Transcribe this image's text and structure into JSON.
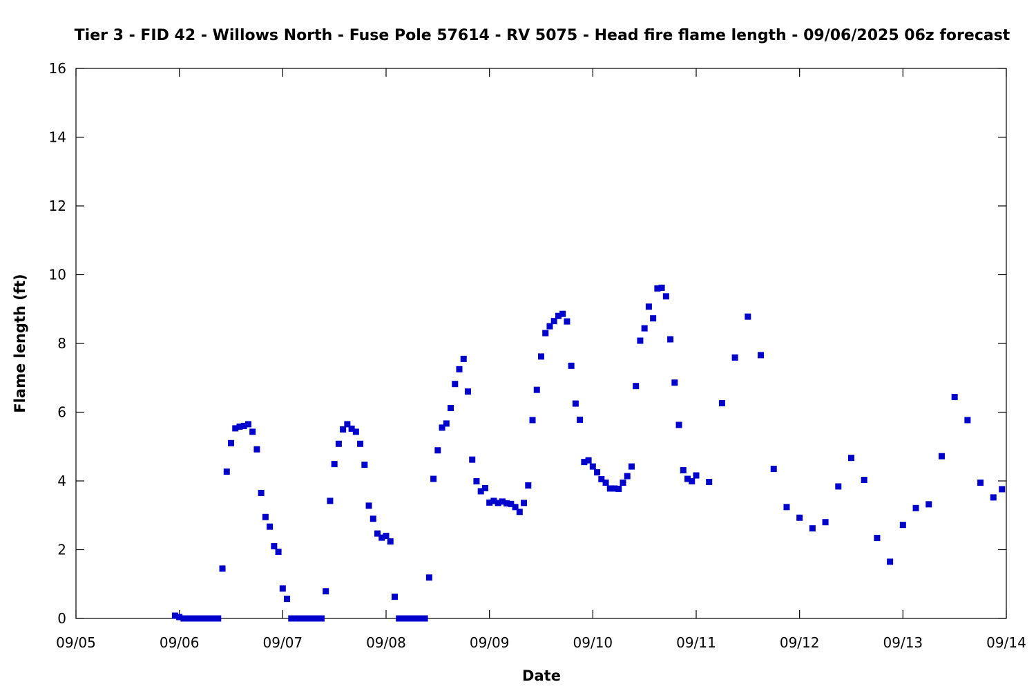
{
  "chart_data": {
    "type": "scatter",
    "title": "Tier 3 - FID 42 - Willows North - Fuse Pole 57614 - RV 5075 - Head fire flame length - 09/06/2025 06z forecast",
    "xlabel": "Date",
    "ylabel": "Flame length (ft)",
    "x_axis": {
      "type": "date",
      "range": [
        "09/05",
        "09/14"
      ],
      "tick_labels": [
        "09/05",
        "09/06",
        "09/07",
        "09/08",
        "09/09",
        "09/10",
        "09/11",
        "09/12",
        "09/13",
        "09/14"
      ]
    },
    "y_axis": {
      "range": [
        0,
        16
      ],
      "tick_values": [
        0,
        2,
        4,
        6,
        8,
        10,
        12,
        14,
        16
      ],
      "tick_labels": [
        "0",
        "2",
        "4",
        "6",
        "8",
        "10",
        "12",
        "14",
        "16"
      ]
    },
    "grid": false,
    "legend": "none",
    "marker_color": "#0000cc",
    "marker_shape": "square",
    "series": [
      {
        "points": [
          [
            "2025-09-05T23:00",
            0.08
          ],
          [
            "2025-09-06T00:00",
            0.04
          ],
          [
            "2025-09-06T01:00",
            0.0
          ],
          [
            "2025-09-06T02:00",
            0.0
          ],
          [
            "2025-09-06T03:00",
            0.0
          ],
          [
            "2025-09-06T04:00",
            0.0
          ],
          [
            "2025-09-06T05:00",
            0.0
          ],
          [
            "2025-09-06T06:00",
            0.0
          ],
          [
            "2025-09-06T07:00",
            0.0
          ],
          [
            "2025-09-06T08:00",
            0.0
          ],
          [
            "2025-09-06T09:00",
            0.0
          ],
          [
            "2025-09-06T10:00",
            1.45
          ],
          [
            "2025-09-06T11:00",
            4.27
          ],
          [
            "2025-09-06T12:00",
            5.1
          ],
          [
            "2025-09-06T13:00",
            5.53
          ],
          [
            "2025-09-06T14:00",
            5.58
          ],
          [
            "2025-09-06T15:00",
            5.6
          ],
          [
            "2025-09-06T16:00",
            5.65
          ],
          [
            "2025-09-06T17:00",
            5.43
          ],
          [
            "2025-09-06T18:00",
            4.92
          ],
          [
            "2025-09-06T19:00",
            3.65
          ],
          [
            "2025-09-06T20:00",
            2.95
          ],
          [
            "2025-09-06T21:00",
            2.67
          ],
          [
            "2025-09-06T22:00",
            2.1
          ],
          [
            "2025-09-06T23:00",
            1.94
          ],
          [
            "2025-09-07T00:00",
            0.87
          ],
          [
            "2025-09-07T01:00",
            0.57
          ],
          [
            "2025-09-07T02:00",
            0.0
          ],
          [
            "2025-09-07T03:00",
            0.0
          ],
          [
            "2025-09-07T04:00",
            0.0
          ],
          [
            "2025-09-07T05:00",
            0.0
          ],
          [
            "2025-09-07T06:00",
            0.0
          ],
          [
            "2025-09-07T07:00",
            0.0
          ],
          [
            "2025-09-07T08:00",
            0.0
          ],
          [
            "2025-09-07T09:00",
            0.0
          ],
          [
            "2025-09-07T10:00",
            0.79
          ],
          [
            "2025-09-07T11:00",
            3.42
          ],
          [
            "2025-09-07T12:00",
            4.49
          ],
          [
            "2025-09-07T13:00",
            5.08
          ],
          [
            "2025-09-07T14:00",
            5.5
          ],
          [
            "2025-09-07T15:00",
            5.65
          ],
          [
            "2025-09-07T16:00",
            5.52
          ],
          [
            "2025-09-07T17:00",
            5.43
          ],
          [
            "2025-09-07T18:00",
            5.08
          ],
          [
            "2025-09-07T19:00",
            4.47
          ],
          [
            "2025-09-07T20:00",
            3.28
          ],
          [
            "2025-09-07T21:00",
            2.9
          ],
          [
            "2025-09-07T22:00",
            2.47
          ],
          [
            "2025-09-07T23:00",
            2.35
          ],
          [
            "2025-09-08T00:00",
            2.4
          ],
          [
            "2025-09-08T01:00",
            2.24
          ],
          [
            "2025-09-08T02:00",
            0.63
          ],
          [
            "2025-09-08T03:00",
            0.0
          ],
          [
            "2025-09-08T04:00",
            0.0
          ],
          [
            "2025-09-08T05:00",
            0.0
          ],
          [
            "2025-09-08T06:00",
            0.0
          ],
          [
            "2025-09-08T07:00",
            0.0
          ],
          [
            "2025-09-08T08:00",
            0.0
          ],
          [
            "2025-09-08T09:00",
            0.0
          ],
          [
            "2025-09-08T10:00",
            1.19
          ],
          [
            "2025-09-08T11:00",
            4.06
          ],
          [
            "2025-09-08T12:00",
            4.89
          ],
          [
            "2025-09-08T13:00",
            5.55
          ],
          [
            "2025-09-08T14:00",
            5.67
          ],
          [
            "2025-09-08T15:00",
            6.12
          ],
          [
            "2025-09-08T16:00",
            6.82
          ],
          [
            "2025-09-08T17:00",
            7.25
          ],
          [
            "2025-09-08T18:00",
            7.55
          ],
          [
            "2025-09-08T19:00",
            6.6
          ],
          [
            "2025-09-08T20:00",
            4.62
          ],
          [
            "2025-09-08T21:00",
            3.99
          ],
          [
            "2025-09-08T22:00",
            3.7
          ],
          [
            "2025-09-08T23:00",
            3.79
          ],
          [
            "2025-09-09T00:00",
            3.37
          ],
          [
            "2025-09-09T01:00",
            3.42
          ],
          [
            "2025-09-09T02:00",
            3.36
          ],
          [
            "2025-09-09T03:00",
            3.4
          ],
          [
            "2025-09-09T04:00",
            3.35
          ],
          [
            "2025-09-09T05:00",
            3.33
          ],
          [
            "2025-09-09T06:00",
            3.24
          ],
          [
            "2025-09-09T07:00",
            3.1
          ],
          [
            "2025-09-09T08:00",
            3.36
          ],
          [
            "2025-09-09T09:00",
            3.87
          ],
          [
            "2025-09-09T10:00",
            5.77
          ],
          [
            "2025-09-09T11:00",
            6.65
          ],
          [
            "2025-09-09T12:00",
            7.62
          ],
          [
            "2025-09-09T13:00",
            8.3
          ],
          [
            "2025-09-09T14:00",
            8.5
          ],
          [
            "2025-09-09T15:00",
            8.65
          ],
          [
            "2025-09-09T16:00",
            8.8
          ],
          [
            "2025-09-09T17:00",
            8.86
          ],
          [
            "2025-09-09T18:00",
            8.64
          ],
          [
            "2025-09-09T19:00",
            7.35
          ],
          [
            "2025-09-09T20:00",
            6.25
          ],
          [
            "2025-09-09T21:00",
            5.78
          ],
          [
            "2025-09-09T22:00",
            4.55
          ],
          [
            "2025-09-09T23:00",
            4.6
          ],
          [
            "2025-09-10T00:00",
            4.42
          ],
          [
            "2025-09-10T01:00",
            4.25
          ],
          [
            "2025-09-10T02:00",
            4.05
          ],
          [
            "2025-09-10T03:00",
            3.95
          ],
          [
            "2025-09-10T04:00",
            3.78
          ],
          [
            "2025-09-10T05:00",
            3.78
          ],
          [
            "2025-09-10T06:00",
            3.77
          ],
          [
            "2025-09-10T07:00",
            3.95
          ],
          [
            "2025-09-10T08:00",
            4.14
          ],
          [
            "2025-09-10T09:00",
            4.42
          ],
          [
            "2025-09-10T10:00",
            6.76
          ],
          [
            "2025-09-10T11:00",
            8.08
          ],
          [
            "2025-09-10T12:00",
            8.44
          ],
          [
            "2025-09-10T13:00",
            9.07
          ],
          [
            "2025-09-10T14:00",
            8.73
          ],
          [
            "2025-09-10T15:00",
            9.6
          ],
          [
            "2025-09-10T16:00",
            9.62
          ],
          [
            "2025-09-10T17:00",
            9.37
          ],
          [
            "2025-09-10T18:00",
            8.12
          ],
          [
            "2025-09-10T19:00",
            6.86
          ],
          [
            "2025-09-10T20:00",
            5.63
          ],
          [
            "2025-09-10T21:00",
            4.31
          ],
          [
            "2025-09-10T22:00",
            4.06
          ],
          [
            "2025-09-10T23:00",
            3.99
          ],
          [
            "2025-09-11T00:00",
            4.16
          ],
          [
            "2025-09-11T03:00",
            3.97
          ],
          [
            "2025-09-11T06:00",
            6.26
          ],
          [
            "2025-09-11T09:00",
            7.59
          ],
          [
            "2025-09-11T12:00",
            8.78
          ],
          [
            "2025-09-11T15:00",
            7.66
          ],
          [
            "2025-09-11T18:00",
            4.35
          ],
          [
            "2025-09-11T21:00",
            3.24
          ],
          [
            "2025-09-12T00:00",
            2.93
          ],
          [
            "2025-09-12T03:00",
            2.62
          ],
          [
            "2025-09-12T06:00",
            2.8
          ],
          [
            "2025-09-12T09:00",
            3.84
          ],
          [
            "2025-09-12T12:00",
            4.67
          ],
          [
            "2025-09-12T15:00",
            4.03
          ],
          [
            "2025-09-12T18:00",
            2.34
          ],
          [
            "2025-09-12T21:00",
            1.65
          ],
          [
            "2025-09-13T00:00",
            2.72
          ],
          [
            "2025-09-13T03:00",
            3.21
          ],
          [
            "2025-09-13T06:00",
            3.32
          ],
          [
            "2025-09-13T09:00",
            4.72
          ],
          [
            "2025-09-13T12:00",
            6.44
          ],
          [
            "2025-09-13T15:00",
            5.77
          ],
          [
            "2025-09-13T18:00",
            3.95
          ],
          [
            "2025-09-13T21:00",
            3.52
          ],
          [
            "2025-09-13T23:00",
            3.76
          ]
        ]
      }
    ]
  }
}
